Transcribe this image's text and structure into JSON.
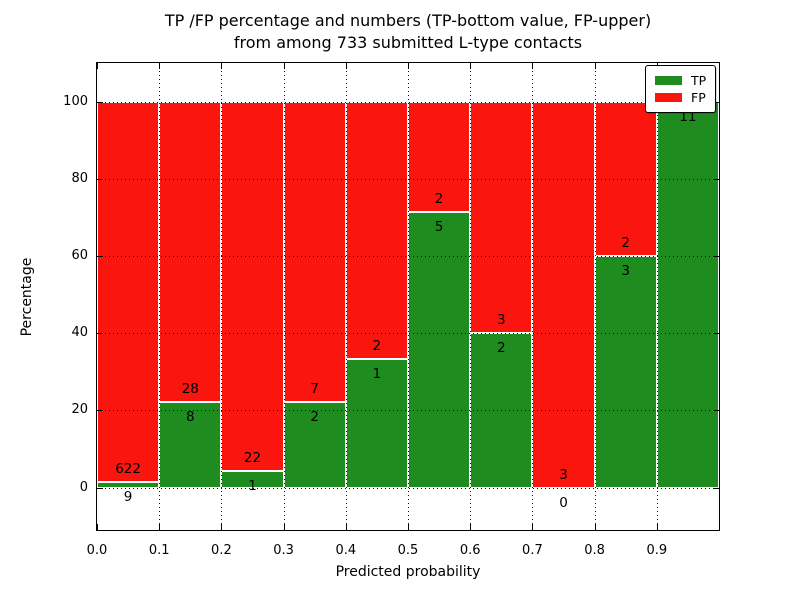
{
  "chart_data": {
    "type": "bar",
    "subtype": "stacked-percentage",
    "title_line1": "TP /FP percentage and numbers (TP-bottom value, FP-upper)",
    "title_line2": "from among 733 submitted L-type contacts",
    "xlabel": "Predicted probability",
    "ylabel": "Percentage",
    "total_contacts": 733,
    "xlim": [
      0.0,
      1.0
    ],
    "ylim": [
      -11,
      110
    ],
    "bin_width": 0.1,
    "grid": "dotted",
    "xticks": [
      "0.0",
      "0.1",
      "0.2",
      "0.3",
      "0.4",
      "0.5",
      "0.6",
      "0.7",
      "0.8",
      "0.9"
    ],
    "yticks": [
      0,
      20,
      40,
      60,
      80,
      100
    ],
    "colors": {
      "tp": "#1f8c1f",
      "fp": "#fa150f",
      "grid": "#111111",
      "bar_edge": "#ffffff"
    },
    "legend": {
      "position": "upper-right",
      "entries": [
        {
          "label": "TP",
          "color": "#1f8c1f"
        },
        {
          "label": "FP",
          "color": "#fa150f"
        }
      ]
    },
    "bars": [
      {
        "bin": "0.0-0.1",
        "tp": 9,
        "fp": 622,
        "tp_pct": 1.43,
        "tp_label": "9",
        "fp_label": "622",
        "fp_label_visible": true
      },
      {
        "bin": "0.1-0.2",
        "tp": 8,
        "fp": 28,
        "tp_pct": 22.22,
        "tp_label": "8",
        "fp_label": "28",
        "fp_label_visible": true
      },
      {
        "bin": "0.2-0.3",
        "tp": 1,
        "fp": 22,
        "tp_pct": 4.35,
        "tp_label": "1",
        "fp_label": "22",
        "fp_label_visible": true
      },
      {
        "bin": "0.3-0.4",
        "tp": 2,
        "fp": 7,
        "tp_pct": 22.22,
        "tp_label": "2",
        "fp_label": "7",
        "fp_label_visible": true
      },
      {
        "bin": "0.4-0.5",
        "tp": 1,
        "fp": 2,
        "tp_pct": 33.33,
        "tp_label": "1",
        "fp_label": "2",
        "fp_label_visible": true
      },
      {
        "bin": "0.5-0.6",
        "tp": 5,
        "fp": 2,
        "tp_pct": 71.43,
        "tp_label": "5",
        "fp_label": "2",
        "fp_label_visible": true
      },
      {
        "bin": "0.6-0.7",
        "tp": 2,
        "fp": 3,
        "tp_pct": 40.0,
        "tp_label": "2",
        "fp_label": "3",
        "fp_label_visible": true
      },
      {
        "bin": "0.7-0.8",
        "tp": 0,
        "fp": 3,
        "tp_pct": 0.0,
        "tp_label": "0",
        "fp_label": "3",
        "fp_label_visible": true
      },
      {
        "bin": "0.8-0.9",
        "tp": 3,
        "fp": 2,
        "tp_pct": 60.0,
        "tp_label": "3",
        "fp_label": "2",
        "fp_label_visible": true
      },
      {
        "bin": "0.9-1.0",
        "tp": 11,
        "fp": 0,
        "tp_pct": 100.0,
        "tp_label": "11",
        "fp_label": "0",
        "fp_label_visible": false
      }
    ]
  }
}
